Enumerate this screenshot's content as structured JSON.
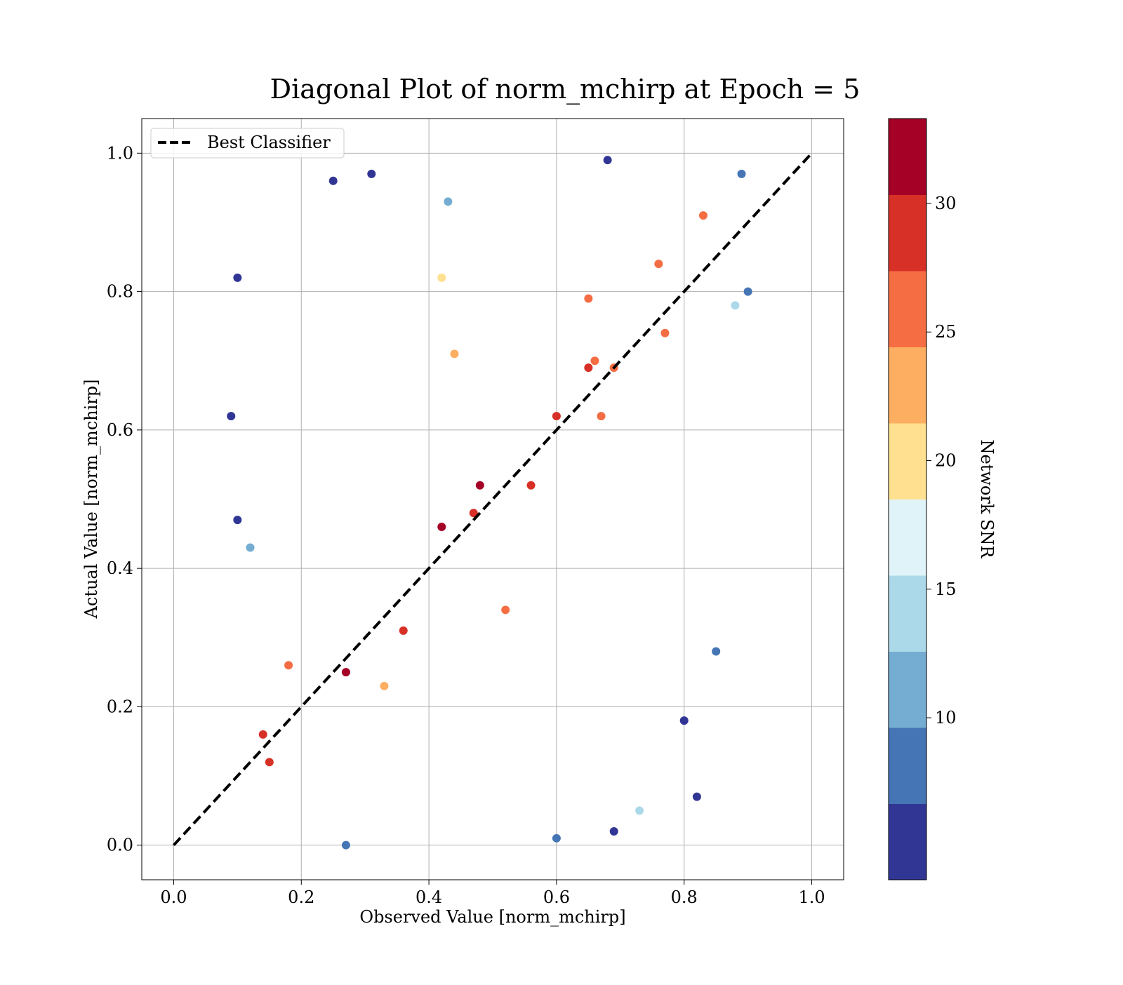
{
  "chart_data": {
    "type": "scatter",
    "title": "Diagonal Plot of norm_mchirp at Epoch = 5",
    "xlabel": "Observed Value [norm_mchirp]",
    "ylabel": "Actual Value [norm_mchirp]",
    "xlim": [
      -0.05,
      1.05
    ],
    "ylim": [
      -0.05,
      1.05
    ],
    "xticks": [
      0.0,
      0.2,
      0.4,
      0.6,
      0.8,
      1.0
    ],
    "yticks": [
      0.0,
      0.2,
      0.4,
      0.6,
      0.8,
      1.0
    ],
    "xtick_labels": [
      "0.0",
      "0.2",
      "0.4",
      "0.6",
      "0.8",
      "1.0"
    ],
    "ytick_labels": [
      "0.0",
      "0.2",
      "0.4",
      "0.6",
      "0.8",
      "1.0"
    ],
    "grid": true,
    "legend": {
      "placement": "top-left",
      "entries": [
        "Best Classifier"
      ]
    },
    "reference_line": {
      "name": "Best Classifier",
      "style": "dashed",
      "color": "#000000",
      "x": [
        0.0,
        1.0
      ],
      "y": [
        0.0,
        1.0
      ]
    },
    "colorbar": {
      "label": "Network SNR",
      "range": [
        3.7,
        33.3
      ],
      "ticks": [
        10,
        15,
        20,
        25,
        30
      ],
      "tick_labels": [
        "10",
        "15",
        "20",
        "25",
        "30"
      ],
      "colormap": [
        "#313695",
        "#4575b4",
        "#74add1",
        "#abd9e9",
        "#e0f3f8",
        "#fee090",
        "#fdae61",
        "#f46d43",
        "#d73027",
        "#a50026"
      ]
    },
    "points": [
      {
        "x": 0.6,
        "y": 0.62,
        "snr": 28
      },
      {
        "x": 0.65,
        "y": 0.69,
        "snr": 28
      },
      {
        "x": 0.48,
        "y": 0.52,
        "snr": 31
      },
      {
        "x": 0.42,
        "y": 0.46,
        "snr": 31
      },
      {
        "x": 0.56,
        "y": 0.52,
        "snr": 29
      },
      {
        "x": 0.27,
        "y": 0.25,
        "snr": 31
      },
      {
        "x": 0.36,
        "y": 0.31,
        "snr": 28
      },
      {
        "x": 0.14,
        "y": 0.16,
        "snr": 28
      },
      {
        "x": 0.15,
        "y": 0.12,
        "snr": 28
      },
      {
        "x": 0.65,
        "y": 0.79,
        "snr": 27
      },
      {
        "x": 0.76,
        "y": 0.84,
        "snr": 26
      },
      {
        "x": 0.83,
        "y": 0.91,
        "snr": 26
      },
      {
        "x": 0.67,
        "y": 0.62,
        "snr": 27
      },
      {
        "x": 0.66,
        "y": 0.7,
        "snr": 27
      },
      {
        "x": 0.47,
        "y": 0.48,
        "snr": 28
      },
      {
        "x": 0.52,
        "y": 0.34,
        "snr": 25
      },
      {
        "x": 0.69,
        "y": 0.69,
        "snr": 26
      },
      {
        "x": 0.44,
        "y": 0.71,
        "snr": 22
      },
      {
        "x": 0.42,
        "y": 0.82,
        "snr": 21
      },
      {
        "x": 0.18,
        "y": 0.26,
        "snr": 25
      },
      {
        "x": 0.77,
        "y": 0.74,
        "snr": 26
      },
      {
        "x": 0.33,
        "y": 0.23,
        "snr": 24
      },
      {
        "x": 0.85,
        "y": 0.28,
        "snr": 7
      },
      {
        "x": 0.69,
        "y": 0.02,
        "snr": 6
      },
      {
        "x": 0.6,
        "y": 0.01,
        "snr": 8
      },
      {
        "x": 0.73,
        "y": 0.05,
        "snr": 14
      },
      {
        "x": 0.82,
        "y": 0.07,
        "snr": 6
      },
      {
        "x": 0.8,
        "y": 0.18,
        "snr": 6
      },
      {
        "x": 0.9,
        "y": 0.8,
        "snr": 9
      },
      {
        "x": 0.89,
        "y": 0.97,
        "snr": 8
      },
      {
        "x": 0.1,
        "y": 0.82,
        "snr": 6
      },
      {
        "x": 0.09,
        "y": 0.62,
        "snr": 6
      },
      {
        "x": 0.1,
        "y": 0.47,
        "snr": 6
      },
      {
        "x": 0.12,
        "y": 0.43,
        "snr": 10
      },
      {
        "x": 0.27,
        "y": 0.0,
        "snr": 8
      },
      {
        "x": 0.88,
        "y": 0.78,
        "snr": 14
      },
      {
        "x": 0.43,
        "y": 0.93,
        "snr": 11
      },
      {
        "x": 0.31,
        "y": 0.97,
        "snr": 6
      },
      {
        "x": 0.25,
        "y": 0.96,
        "snr": 6
      },
      {
        "x": 0.68,
        "y": 0.99,
        "snr": 6
      }
    ]
  }
}
